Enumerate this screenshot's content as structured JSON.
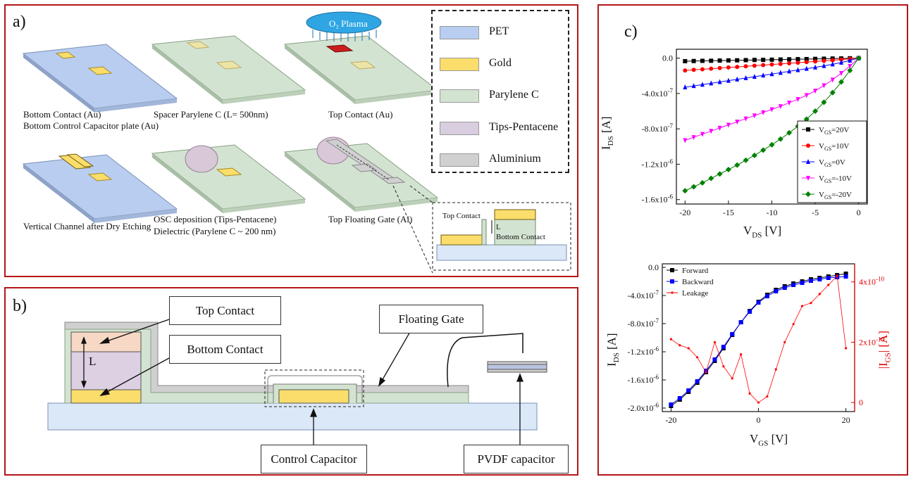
{
  "panel_a": {
    "label": "a)",
    "plasma": "O₂ Plasma",
    "captions": {
      "c1a": "Bottom Contact (Au)",
      "c1b": "Bottom Control Capacitor plate (Au)",
      "c2": "Spacer Parylene C (L= 500nm)",
      "c3": "Top Contact (Au)",
      "c4": "Vertical Channel after Dry Etching",
      "c5a": "OSC deposition (Tips-Pentacene)",
      "c5b": "Dielectric (Parylene C ~ 200 nm)",
      "c6": "Top Floating Gate (Al)"
    },
    "legend": [
      {
        "label": "PET",
        "color": "#b9cdf0"
      },
      {
        "label": "Gold",
        "color": "#fbdd6b"
      },
      {
        "label": "Parylene C",
        "color": "#d3e3d1"
      },
      {
        "label": "Tips-Pentacene",
        "color": "#d9cde0"
      },
      {
        "label": "Aluminium",
        "color": "#d0d0d0"
      }
    ],
    "inset": {
      "top": "Top Contact",
      "l": "L",
      "bottom": "Bottom Contact"
    }
  },
  "panel_b": {
    "label": "b)",
    "labels": {
      "top_contact": "Top Contact",
      "bottom_contact": "Bottom Contact",
      "floating_gate": "Floating Gate",
      "control_capacitor": "Control Capacitor",
      "pvdf": "PVDF capacitor",
      "l": "L"
    }
  },
  "panel_c": {
    "label": "c)",
    "top_xlabel": "V",
    "top_xlabel_sub": "DS",
    "top_xlabel_unit": " [V]",
    "top_ylabel": "I",
    "top_ylabel_sub": "DS",
    "top_ylabel_unit": " [A]",
    "bot_xlabel": "V",
    "bot_xlabel_sub": "GS",
    "bot_xlabel_unit": " [V]",
    "bot_ylabel": "I",
    "bot_ylabel_sub": "DS",
    "bot_ylabel_unit": " [A]",
    "bot_y2label": "|I",
    "bot_y2label_sub": "GS",
    "bot_y2label_unit": "| [A]"
  },
  "chart_data": [
    {
      "type": "line",
      "xlabel": "VDS [V]",
      "ylabel": "IDS [A]",
      "xlim": [
        -21,
        1
      ],
      "ylim": [
        -1.65e-06,
        1e-07
      ],
      "xticks": [
        "-20",
        "-15",
        "-10",
        "-5",
        "0"
      ],
      "yticks": [
        "0.0",
        "-4.0x10-7",
        "-8.0x10-7",
        "-1.2x10-6",
        "-1.6x10-6"
      ],
      "legend_position": "right",
      "x": [
        -20,
        -19,
        -18,
        -17,
        -16,
        -15,
        -14,
        -13,
        -12,
        -11,
        -10,
        -9,
        -8,
        -7,
        -6,
        -5,
        -4,
        -3,
        -2,
        -1,
        0
      ],
      "series": [
        {
          "name": "VGS=20V",
          "color": "#000000",
          "marker": "square",
          "values": [
            -3.5e-08,
            -3.3e-08,
            -3.1e-08,
            -3e-08,
            -2.8e-08,
            -2.6e-08,
            -2.5e-08,
            -2.3e-08,
            -2.1e-08,
            -2e-08,
            -1.8e-08,
            -1.6e-08,
            -1.4e-08,
            -1.2e-08,
            -1.1e-08,
            -9e-09,
            -7e-09,
            -5e-09,
            -4e-09,
            -2e-09,
            0
          ]
        },
        {
          "name": "VGS=10V",
          "color": "#ff0000",
          "marker": "circle",
          "values": [
            -1.4e-07,
            -1.33e-07,
            -1.27e-07,
            -1.2e-07,
            -1.13e-07,
            -1.06e-07,
            -1e-07,
            -9.3e-08,
            -8.6e-08,
            -7.9e-08,
            -7.2e-08,
            -6.6e-08,
            -5.9e-08,
            -5.2e-08,
            -4.5e-08,
            -3.8e-08,
            -3.1e-08,
            -2.4e-08,
            -1.6e-08,
            -8e-09,
            0
          ]
        },
        {
          "name": "VGS=0V",
          "color": "#0000ff",
          "marker": "triangle",
          "values": [
            -3.3e-07,
            -3.15e-07,
            -3e-07,
            -2.85e-07,
            -2.7e-07,
            -2.55e-07,
            -2.4e-07,
            -2.25e-07,
            -2.1e-07,
            -1.95e-07,
            -1.8e-07,
            -1.65e-07,
            -1.5e-07,
            -1.35e-07,
            -1.2e-07,
            -1.05e-07,
            -8.8e-08,
            -7e-08,
            -5e-08,
            -2.7e-08,
            0
          ]
        },
        {
          "name": "VGS=-10V",
          "color": "#ff00ff",
          "marker": "triangle-down",
          "values": [
            -9.3e-07,
            -8.95e-07,
            -8.6e-07,
            -8.25e-07,
            -7.9e-07,
            -7.55e-07,
            -7.2e-07,
            -6.85e-07,
            -6.5e-07,
            -6.15e-07,
            -5.8e-07,
            -5.45e-07,
            -5.05e-07,
            -4.65e-07,
            -4.2e-07,
            -3.7e-07,
            -3.1e-07,
            -2.45e-07,
            -1.7e-07,
            -9e-08,
            0
          ]
        },
        {
          "name": "VGS=-20V",
          "color": "#008000",
          "marker": "diamond",
          "values": [
            -1.5e-06,
            -1.455e-06,
            -1.41e-06,
            -1.36e-06,
            -1.31e-06,
            -1.26e-06,
            -1.21e-06,
            -1.155e-06,
            -1.1e-06,
            -1.04e-06,
            -9.8e-07,
            -9.15e-07,
            -8.45e-07,
            -7.7e-07,
            -6.9e-07,
            -6e-07,
            -5e-07,
            -3.9e-07,
            -2.7e-07,
            -1.4e-07,
            0
          ]
        }
      ]
    },
    {
      "type": "line",
      "xlabel": "VGS [V]",
      "ylabel": "IDS [A]",
      "y2label": "|IGS| [A]",
      "xlim": [
        -22,
        22
      ],
      "ylim": [
        -2.05e-06,
        5e-08
      ],
      "y2lim": [
        -3e-11,
        4.6e-10
      ],
      "xticks": [
        "-20",
        "0",
        "20"
      ],
      "yticks": [
        "0.0",
        "-4.0x10-7",
        "-8.0x10-7",
        "-1.2x10-6",
        "-1.6x10-6",
        "-2.0x10-6"
      ],
      "y2ticks": [
        "0",
        "2x10-10",
        "4x10-10"
      ],
      "legend_position": "top-left",
      "x": [
        -20,
        -18,
        -16,
        -14,
        -12,
        -10,
        -8,
        -6,
        -4,
        -2,
        0,
        2,
        4,
        6,
        8,
        10,
        12,
        14,
        16,
        18,
        20
      ],
      "series": [
        {
          "name": "Forward",
          "color": "#000000",
          "marker": "square",
          "axis": "left",
          "values": [
            -1.97e-06,
            -1.88e-06,
            -1.77e-06,
            -1.64e-06,
            -1.49e-06,
            -1.33e-06,
            -1.15e-06,
            -9.6e-07,
            -7.8e-07,
            -6.2e-07,
            -4.9e-07,
            -3.9e-07,
            -3.2e-07,
            -2.7e-07,
            -2.3e-07,
            -2e-07,
            -1.7e-07,
            -1.5e-07,
            -1.3e-07,
            -1.1e-07,
            -9e-08
          ]
        },
        {
          "name": "Backward",
          "color": "#0000ff",
          "marker": "square",
          "axis": "left",
          "values": [
            -1.95e-06,
            -1.86e-06,
            -1.75e-06,
            -1.62e-06,
            -1.47e-06,
            -1.31e-06,
            -1.13e-06,
            -9.5e-07,
            -7.8e-07,
            -6.3e-07,
            -5e-07,
            -4.1e-07,
            -3.4e-07,
            -2.9e-07,
            -2.5e-07,
            -2.2e-07,
            -1.9e-07,
            -1.7e-07,
            -1.5e-07,
            -1.4e-07,
            -1.3e-07
          ]
        },
        {
          "name": "Leakage",
          "color": "#ff0000",
          "marker": "dot",
          "axis": "right",
          "values": [
            2.1e-10,
            1.9e-10,
            1.8e-10,
            1.5e-10,
            1e-10,
            2e-10,
            1.2e-10,
            8e-11,
            1.6e-10,
            3e-11,
            0.0,
            2e-11,
            1.1e-10,
            2e-10,
            2.6e-10,
            3.2e-10,
            3.3e-10,
            3.6e-10,
            3.9e-10,
            4.2e-10,
            1.8e-10
          ]
        }
      ]
    }
  ]
}
